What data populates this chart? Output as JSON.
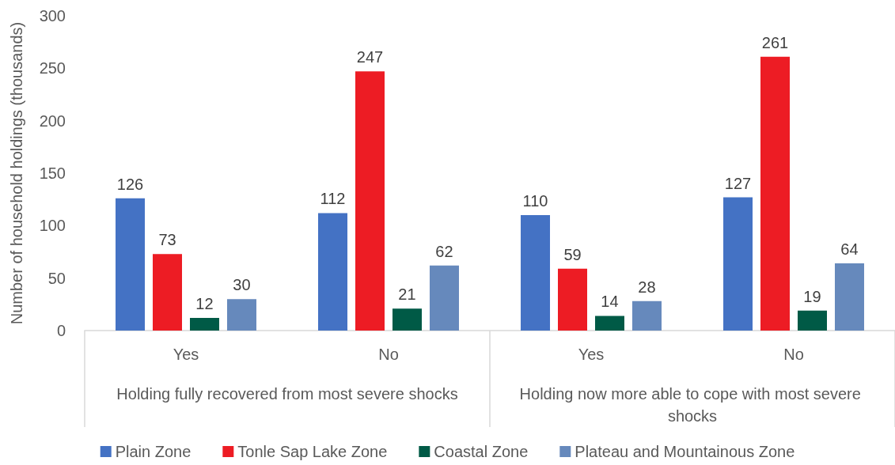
{
  "chart_data": {
    "type": "bar",
    "ylabel": "Number of household holdings (thousands)",
    "categories": [
      "Yes",
      "No",
      "Yes",
      "No"
    ],
    "annotations": [
      "Holding fully recovered from most severe shocks",
      "Holding now more able to cope with most severe shocks"
    ],
    "series": [
      {
        "name": "Plain Zone",
        "color": "#4472c4",
        "values": [
          126,
          112,
          110,
          127
        ]
      },
      {
        "name": "Tonle Sap Lake Zone",
        "color": "#ed1c24",
        "values": [
          73,
          247,
          59,
          261
        ]
      },
      {
        "name": "Coastal Zone",
        "color": "#005a46",
        "values": [
          12,
          21,
          14,
          19
        ]
      },
      {
        "name": "Plateau and Mountainous Zone",
        "color": "#6689bc",
        "values": [
          30,
          62,
          28,
          64
        ]
      }
    ],
    "ylim": [
      0,
      300
    ],
    "yticks": [
      0,
      50,
      100,
      150,
      200,
      250,
      300
    ],
    "grid": false,
    "data_labels": true,
    "legend": "bottom"
  }
}
